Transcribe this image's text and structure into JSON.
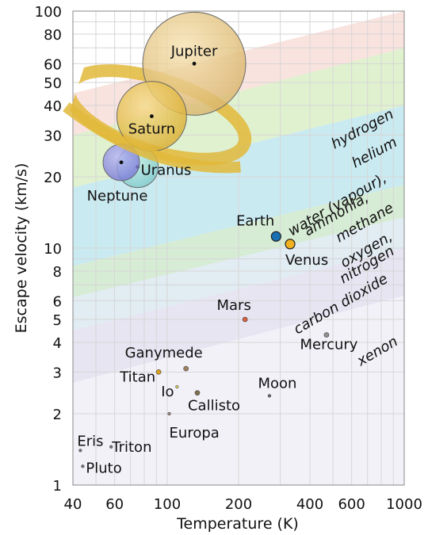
{
  "chart_data": {
    "type": "scatter",
    "title": "",
    "xlabel": "Temperature (K)",
    "ylabel": "Escape velocity (km/s)",
    "x_scale": "log",
    "y_scale": "log",
    "xlim": [
      40,
      1000
    ],
    "ylim": [
      1,
      100
    ],
    "grid": true,
    "x_ticks": [
      40,
      60,
      100,
      200,
      400,
      600,
      1000
    ],
    "y_ticks": [
      1,
      2,
      3,
      4,
      5,
      6,
      8,
      10,
      20,
      30,
      40,
      50,
      60,
      80,
      100
    ],
    "bodies": [
      {
        "name": "Jupiter",
        "x": 130,
        "y": 60,
        "color": "#e8c26a",
        "size": 3
      },
      {
        "name": "Saturn",
        "x": 86,
        "y": 36,
        "color": "#e8bf3c",
        "size": 2
      },
      {
        "name": "Uranus",
        "x": 75,
        "y": 22,
        "color": "#8fd8d8",
        "size": 1
      },
      {
        "name": "Neptune",
        "x": 64,
        "y": 23,
        "color": "#8f8fe0",
        "size": 1
      },
      {
        "name": "Earth",
        "x": 288,
        "y": 11.2,
        "color": "#1a6fb3",
        "size": 0
      },
      {
        "name": "Venus",
        "x": 330,
        "y": 10.4,
        "color": "#f0b020",
        "size": 0
      },
      {
        "name": "Mars",
        "x": 213,
        "y": 5.0,
        "color": "#d86040",
        "size": 0
      },
      {
        "name": "Mercury",
        "x": 470,
        "y": 4.3,
        "color": "#909090",
        "size": 0
      },
      {
        "name": "Ganymede",
        "x": 120,
        "y": 3.1,
        "color": "#a08060",
        "size": 0
      },
      {
        "name": "Titan",
        "x": 92,
        "y": 3.0,
        "color": "#d8a020",
        "size": 0
      },
      {
        "name": "Io",
        "x": 110,
        "y": 2.6,
        "color": "#d8d060",
        "size": 0
      },
      {
        "name": "Callisto",
        "x": 134,
        "y": 2.45,
        "color": "#807050",
        "size": 0
      },
      {
        "name": "Europa",
        "x": 102,
        "y": 2.0,
        "color": "#a09080",
        "size": 0
      },
      {
        "name": "Moon",
        "x": 270,
        "y": 2.38,
        "color": "#666666",
        "size": 0
      },
      {
        "name": "Eris",
        "x": 43,
        "y": 1.4,
        "color": "#777777",
        "size": 0
      },
      {
        "name": "Triton",
        "x": 58,
        "y": 1.45,
        "color": "#777777",
        "size": 0
      },
      {
        "name": "Pluto",
        "x": 44,
        "y": 1.2,
        "color": "#777777",
        "size": 0
      }
    ],
    "bands": [
      {
        "name": "hydrogen",
        "color": "#f2c0b8"
      },
      {
        "name": "helium",
        "color": "#c6e6a8"
      },
      {
        "name": "water (vapour), ammonia, methane",
        "color": "#9ed8e6"
      },
      {
        "name": "oxygen, nitrogen",
        "color": "#b4dcb0"
      },
      {
        "name": "carbon dioxide",
        "color": "#c4dae8"
      },
      {
        "name": "xenon",
        "color": "#d4cfe8"
      }
    ],
    "band_labels": [
      "hydrogen",
      "helium",
      "water (vapour),",
      "ammonia,",
      "methane",
      "oxygen,",
      "nitrogen",
      "carbon dioxide",
      "xenon"
    ]
  }
}
